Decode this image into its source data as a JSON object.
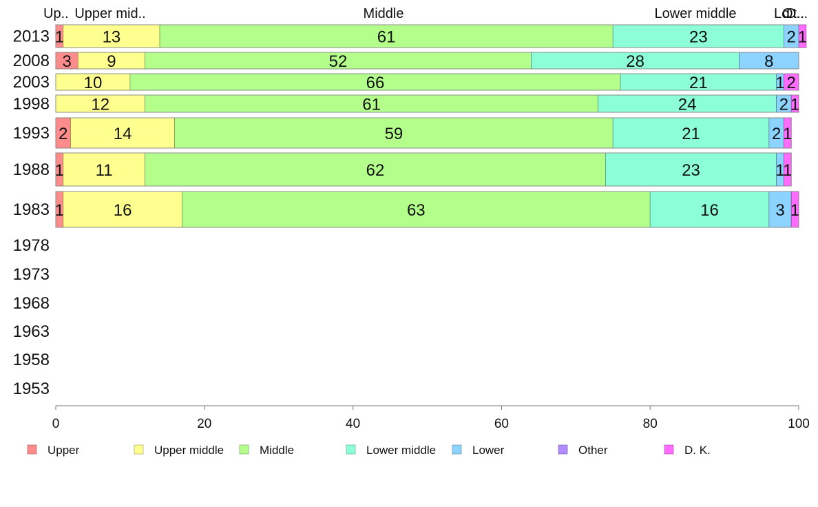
{
  "chart_data": {
    "type": "bar",
    "orientation": "horizontal",
    "stacked": true,
    "xlim": [
      0,
      100
    ],
    "x_ticks": [
      "0",
      "20",
      "40",
      "60",
      "80",
      "100"
    ],
    "legend_position": "bottom",
    "grid": false,
    "categories": [
      "2013",
      "2008",
      "2003",
      "1998",
      "1993",
      "1988",
      "1983",
      "1978",
      "1973",
      "1968",
      "1963",
      "1958",
      "1953"
    ],
    "top_labels": [
      "Up..",
      "Upper mid..",
      "Middle",
      "Lower middle",
      "Lo..",
      "Ot..",
      "D..."
    ],
    "series": [
      {
        "name": "Upper",
        "color": "#ff8c8c",
        "values": [
          1,
          3,
          0,
          0,
          2,
          1,
          1,
          null,
          null,
          null,
          null,
          null,
          null
        ]
      },
      {
        "name": "Upper middle",
        "color": "#ffff90",
        "values": [
          13,
          9,
          10,
          12,
          14,
          11,
          16,
          null,
          null,
          null,
          null,
          null,
          null
        ]
      },
      {
        "name": "Middle",
        "color": "#b4ff8c",
        "values": [
          61,
          52,
          66,
          61,
          59,
          62,
          63,
          null,
          null,
          null,
          null,
          null,
          null
        ]
      },
      {
        "name": "Lower middle",
        "color": "#8cffd8",
        "values": [
          23,
          28,
          21,
          24,
          21,
          23,
          16,
          null,
          null,
          null,
          null,
          null,
          null
        ]
      },
      {
        "name": "Lower",
        "color": "#8cd4ff",
        "values": [
          2,
          8,
          1,
          2,
          2,
          1,
          3,
          null,
          null,
          null,
          null,
          null,
          null
        ]
      },
      {
        "name": "Other",
        "color": "#b08cff",
        "values": [
          0,
          0,
          0,
          0,
          0,
          0,
          0,
          null,
          null,
          null,
          null,
          null,
          null
        ]
      },
      {
        "name": "D. K.",
        "color": "#ff6cff",
        "values": [
          1,
          0,
          2,
          1,
          1,
          1,
          1,
          null,
          null,
          null,
          null,
          null,
          null
        ]
      }
    ]
  }
}
